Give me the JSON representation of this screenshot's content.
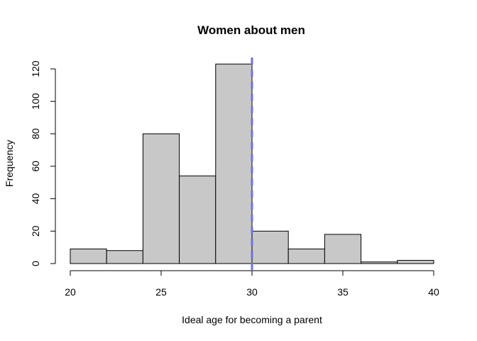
{
  "chart_data": {
    "type": "bar",
    "subtype": "histogram",
    "title": "Women about men",
    "xlabel": "Ideal age for becoming a parent",
    "ylabel": "Frequency",
    "bins": [
      {
        "start": 20,
        "end": 22,
        "count": 9
      },
      {
        "start": 22,
        "end": 24,
        "count": 8
      },
      {
        "start": 24,
        "end": 26,
        "count": 80
      },
      {
        "start": 26,
        "end": 28,
        "count": 54
      },
      {
        "start": 28,
        "end": 30,
        "count": 123
      },
      {
        "start": 30,
        "end": 32,
        "count": 20
      },
      {
        "start": 32,
        "end": 34,
        "count": 9
      },
      {
        "start": 34,
        "end": 36,
        "count": 18
      },
      {
        "start": 36,
        "end": 38,
        "count": 1
      },
      {
        "start": 38,
        "end": 40,
        "count": 2
      }
    ],
    "xlim": [
      20,
      40
    ],
    "ylim": [
      0,
      123
    ],
    "xticks": [
      "20",
      "25",
      "30",
      "35",
      "40"
    ],
    "yticks": [
      "0",
      "20",
      "40",
      "60",
      "80",
      "100",
      "120"
    ],
    "reference_line": {
      "x": 30,
      "style": "dashed",
      "color": "#7070e0"
    },
    "bar_color": "#c8c8c8",
    "grid": false,
    "legend": "none"
  }
}
